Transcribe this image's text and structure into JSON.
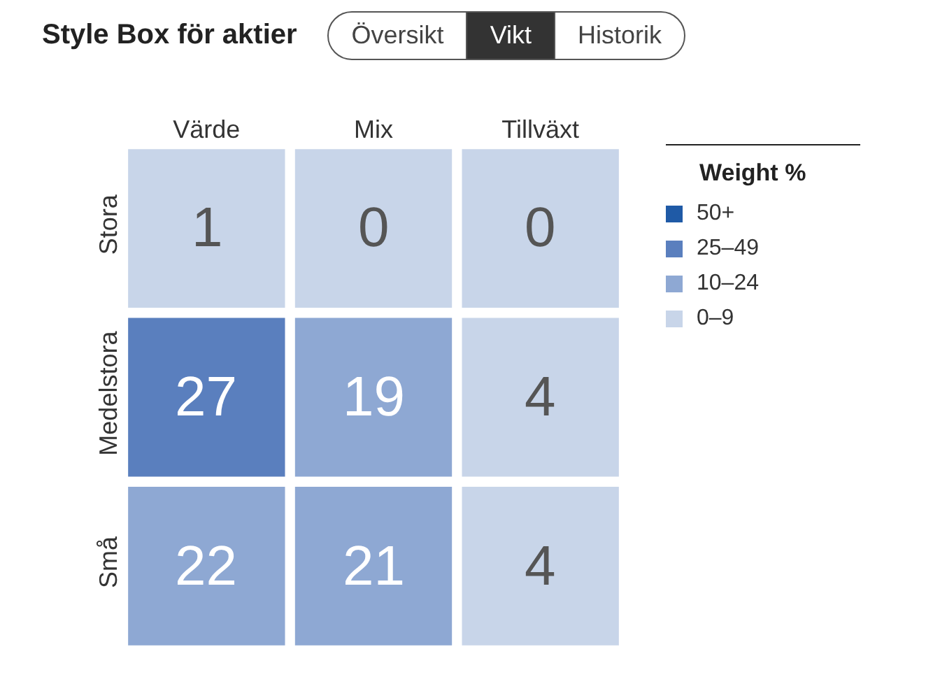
{
  "chart_data": {
    "type": "heatmap",
    "title": "Style Box för aktier",
    "annotations": [
      "Översikt",
      "Vikt",
      "Historik"
    ],
    "categories": [
      "Värde",
      "Mix",
      "Tillväxt"
    ],
    "y_categories": [
      "Stora",
      "Medelstora",
      "Små"
    ],
    "cells": [
      [
        1,
        0,
        0
      ],
      [
        27,
        19,
        4
      ],
      [
        22,
        21,
        4
      ]
    ],
    "colors": [
      [
        "#c8d5e9",
        "#c8d5e9",
        "#c8d5e9"
      ],
      [
        "#5a7fbe",
        "#8ea8d3",
        "#c8d5e9"
      ],
      [
        "#8ea8d3",
        "#8ea8d3",
        "#c8d5e9"
      ]
    ],
    "data_labels": true,
    "legend_title": "Weight %",
    "legend": "right",
    "series": [
      {
        "name": "50+",
        "color": "#1f5aa6",
        "values": [
          null,
          null,
          null
        ]
      },
      {
        "name": "25–49",
        "color": "#5a7fbe",
        "values": [
          null,
          null,
          null
        ]
      },
      {
        "name": "10–24",
        "color": "#8ea8d3",
        "values": [
          null,
          null,
          null
        ]
      },
      {
        "name": "0–9",
        "color": "#c8d5e9",
        "values": [
          null,
          null,
          null
        ]
      }
    ]
  }
}
